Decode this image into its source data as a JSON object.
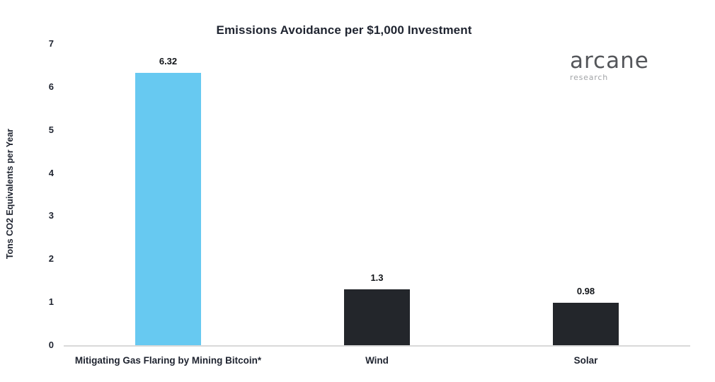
{
  "chart_data": {
    "type": "bar",
    "title": "Emissions Avoidance per $1,000 Investment",
    "xlabel": "",
    "ylabel": "Tons CO2 Equivalents per Year",
    "categories": [
      "Mitigating Gas Flaring by Mining Bitcoin*",
      "Wind",
      "Solar"
    ],
    "values": [
      6.32,
      1.3,
      0.98
    ],
    "value_labels": [
      "6.32",
      "1.3",
      "0.98"
    ],
    "bar_colors": [
      "#67C9F1",
      "#23262B",
      "#23262B"
    ],
    "ylim": [
      0,
      7
    ],
    "yticks": [
      0,
      1,
      2,
      3,
      4,
      5,
      6,
      7
    ],
    "grid": false,
    "legend_position": "none"
  },
  "branding": {
    "logo_text": "arcane",
    "logo_subtext": "research"
  },
  "colors": {
    "background": "#ffffff",
    "title_text": "#1f2430",
    "axis_line": "#d9d9d9",
    "highlight_bar": "#67C9F1",
    "default_bar": "#23262B"
  }
}
